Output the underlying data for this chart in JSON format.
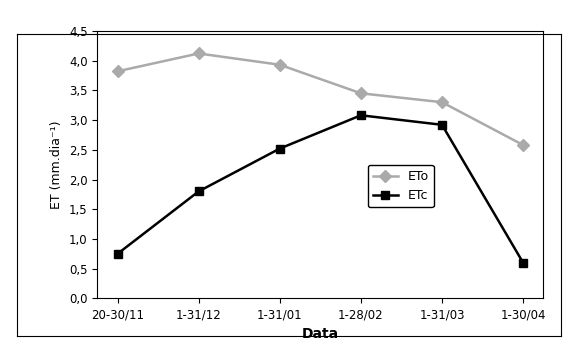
{
  "x_labels": [
    "20-30/11",
    "1-31/12",
    "1-31/01",
    "1-28/02",
    "1-31/03",
    "1-30/04"
  ],
  "ETo": [
    3.82,
    4.12,
    3.93,
    3.45,
    3.3,
    2.58
  ],
  "ETc": [
    0.75,
    1.8,
    2.52,
    3.08,
    2.92,
    0.6
  ],
  "ETo_color": "#aaaaaa",
  "ETc_color": "#000000",
  "xlabel": "Data",
  "ylabel": "ET (mm.dia⁻¹)",
  "ylim": [
    0.0,
    4.5
  ],
  "yticks": [
    0.0,
    0.5,
    1.0,
    1.5,
    2.0,
    2.5,
    3.0,
    3.5,
    4.0,
    4.5
  ],
  "legend_ETo": "ETo",
  "legend_ETc": "ETc",
  "marker_ETo": "D",
  "marker_ETc": "s",
  "linewidth": 1.8,
  "markersize": 6,
  "background_color": "#ffffff"
}
